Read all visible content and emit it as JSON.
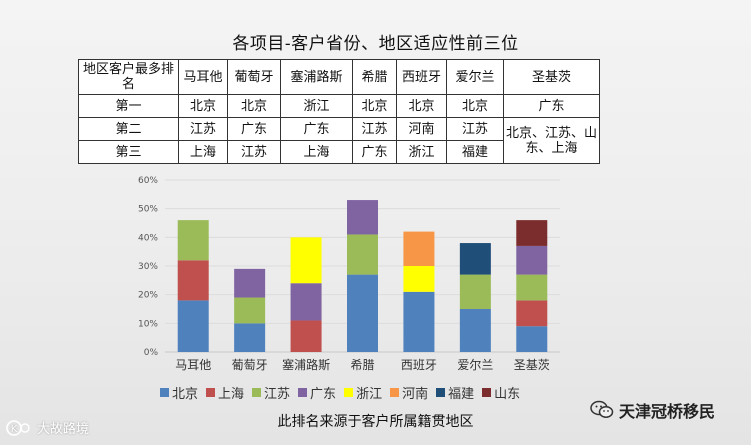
{
  "title": "各项目-客户省份、地区适应性前三位",
  "table": {
    "corner": "地区客户最多排名",
    "columns": [
      "马耳他",
      "葡萄牙",
      "塞浦路斯",
      "希腊",
      "西班牙",
      "爱尔兰",
      "圣基茨"
    ],
    "rows": [
      {
        "rank": "第一",
        "cells": [
          "北京",
          "北京",
          "浙江",
          "北京",
          "北京",
          "北京",
          "广东"
        ]
      },
      {
        "rank": "第二",
        "cells": [
          "江苏",
          "广东",
          "广东",
          "江苏",
          "河南",
          "江苏",
          "北京、江苏、山东、上海"
        ]
      },
      {
        "rank": "第三",
        "cells": [
          "上海",
          "江苏",
          "上海",
          "广东",
          "浙江",
          "福建",
          ""
        ]
      }
    ]
  },
  "chart_data": {
    "type": "bar",
    "stacked": true,
    "categories": [
      "马耳他",
      "葡萄牙",
      "塞浦路斯",
      "希腊",
      "西班牙",
      "爱尔兰",
      "圣基茨"
    ],
    "yticks": [
      "0%",
      "10%",
      "20%",
      "30%",
      "40%",
      "50%",
      "60%"
    ],
    "ylim": [
      0,
      60
    ],
    "series": [
      {
        "name": "北京",
        "color": "#4f81bd",
        "values": [
          18,
          10,
          0,
          27,
          21,
          15,
          9
        ]
      },
      {
        "name": "上海",
        "color": "#c0504d",
        "values": [
          14,
          0,
          11,
          0,
          0,
          0,
          9
        ]
      },
      {
        "name": "江苏",
        "color": "#9bbb59",
        "values": [
          14,
          9,
          0,
          14,
          0,
          12,
          9
        ]
      },
      {
        "name": "广东",
        "color": "#8064a2",
        "values": [
          0,
          10,
          13,
          12,
          0,
          0,
          10
        ]
      },
      {
        "name": "浙江",
        "color": "#ffff00",
        "values": [
          0,
          0,
          16,
          0,
          9,
          0,
          0
        ]
      },
      {
        "name": "河南",
        "color": "#f79646",
        "values": [
          0,
          0,
          0,
          0,
          12,
          0,
          0
        ]
      },
      {
        "name": "福建",
        "color": "#1f4e79",
        "values": [
          0,
          0,
          0,
          0,
          0,
          11,
          0
        ]
      },
      {
        "name": "山东",
        "color": "#7b2c2c",
        "values": [
          0,
          0,
          0,
          0,
          0,
          0,
          9
        ]
      }
    ],
    "grid": true,
    "legend": "bottom"
  },
  "subtitle": "此排名来源于客户所属籍贯地区",
  "watermark_left": "大故路境",
  "watermark_right": "天津冠桥移民",
  "icons": {
    "left": "k-logo-icon",
    "right": "wechat-icon"
  }
}
